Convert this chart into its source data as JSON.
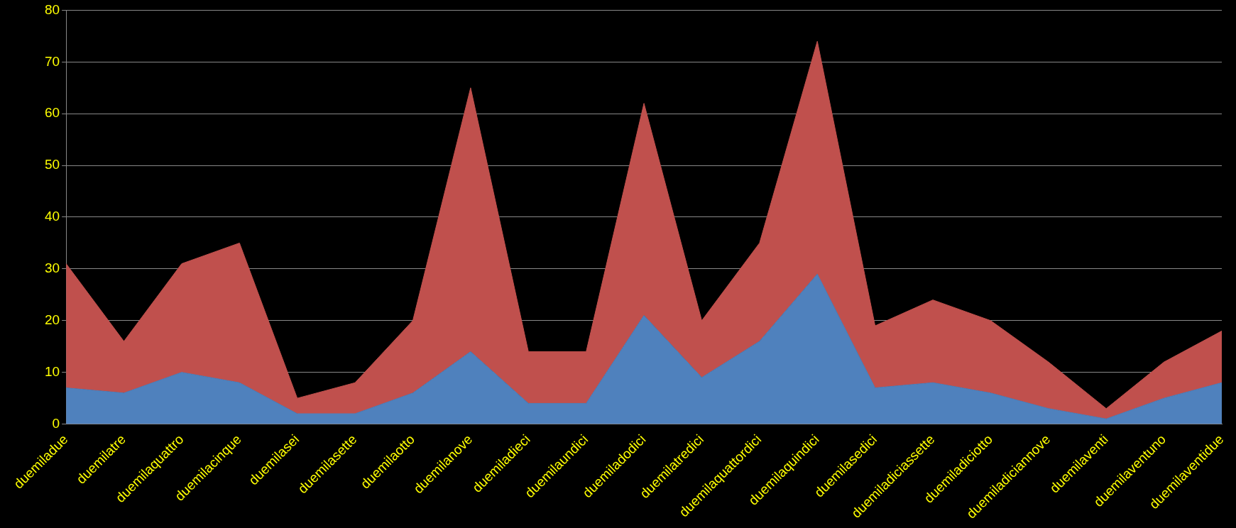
{
  "chart_data": {
    "type": "area",
    "stacked": true,
    "categories": [
      "duemiladue",
      "duemilatre",
      "duemilaquattro",
      "duemilacinque",
      "duemilasei",
      "duemilasette",
      "duemilaotto",
      "duemilanove",
      "duemiladieci",
      "duemilaundici",
      "duemiladodici",
      "duemilatredici",
      "duemilaquattordici",
      "duemilaquindici",
      "duemilasedici",
      "duemiladiciassette",
      "duemiladiciotto",
      "duemiladiciannove",
      "duemilaventi",
      "duemilaventuno",
      "duemilaventidue"
    ],
    "series": [
      {
        "color": "#4f81bd",
        "values": [
          7,
          6,
          10,
          8,
          2,
          2,
          6,
          14,
          4,
          4,
          21,
          9,
          16,
          29,
          7,
          8,
          6,
          3,
          1,
          5,
          8
        ]
      },
      {
        "color": "#c0504d",
        "values": [
          24,
          10,
          21,
          27,
          3,
          6,
          14,
          51,
          10,
          10,
          41,
          11,
          19,
          45,
          12,
          16,
          14,
          9,
          2,
          7,
          10
        ]
      }
    ],
    "ylim": [
      0,
      80
    ],
    "yticks": [
      0,
      10,
      20,
      30,
      40,
      50,
      60,
      70,
      80
    ],
    "grid": "y",
    "legend": false
  }
}
